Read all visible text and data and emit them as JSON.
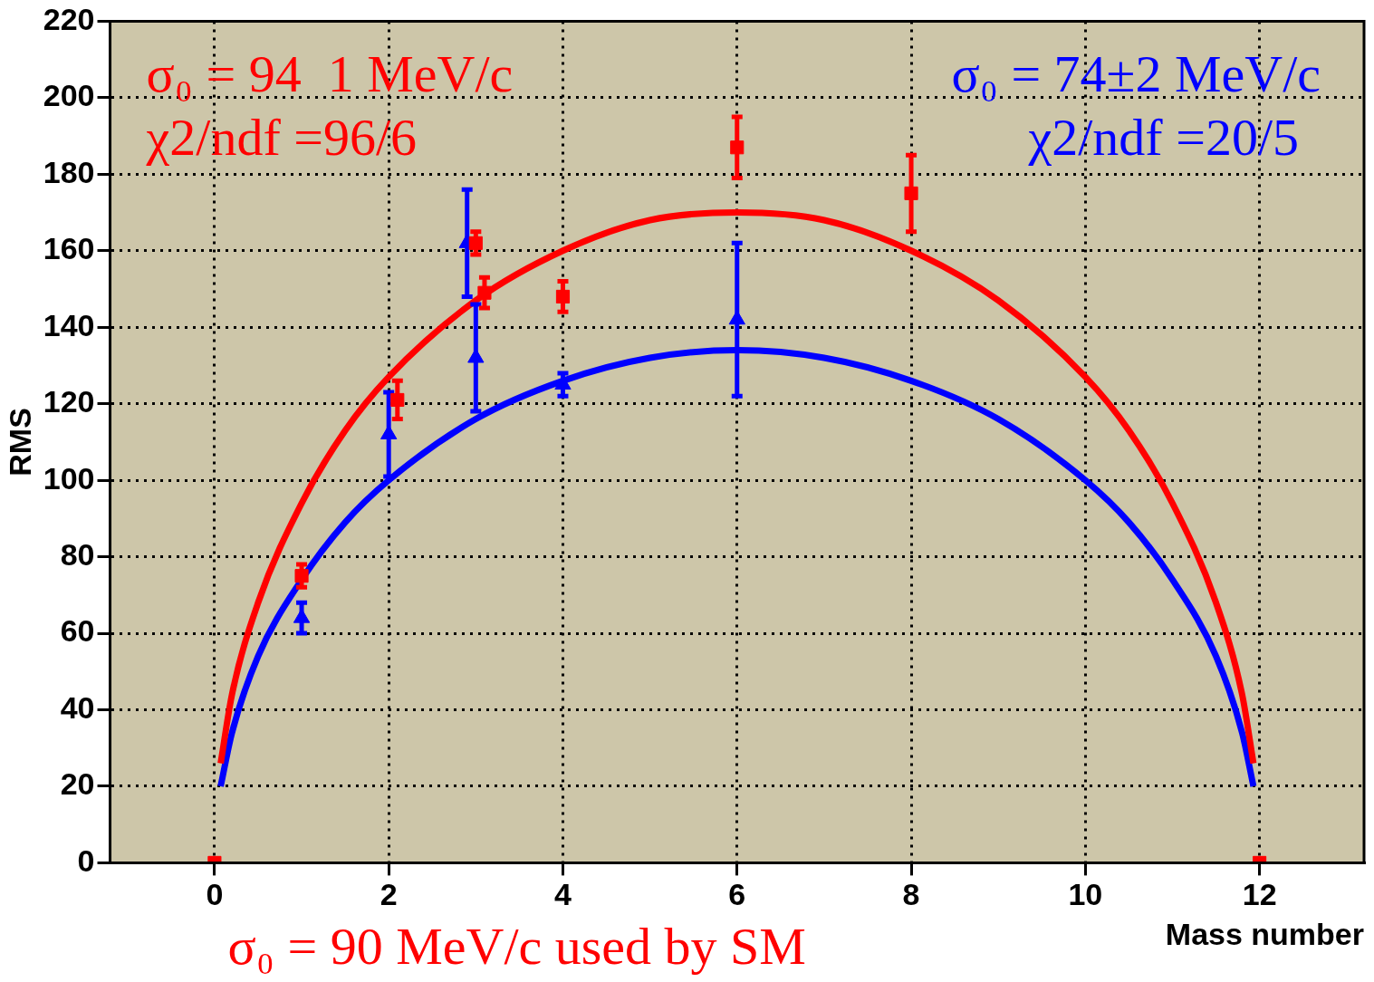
{
  "chart_data": {
    "type": "scatter",
    "xlabel": "Mass number",
    "ylabel": "RMS",
    "xlim": [
      -1.2,
      13.2
    ],
    "xticks": [
      0,
      2,
      4,
      6,
      8,
      10,
      12
    ],
    "ylim": [
      0,
      220
    ],
    "yticks": [
      0,
      20,
      40,
      60,
      80,
      100,
      120,
      140,
      160,
      180,
      200,
      220
    ],
    "grid": true,
    "legend": false,
    "series": [
      {
        "marker": "square",
        "color": "#ff0000",
        "x": [
          0,
          1,
          2.1,
          3,
          3.1,
          4,
          6,
          8,
          12
        ],
        "values": [
          0,
          75,
          121,
          162,
          149,
          148,
          187,
          175,
          0
        ],
        "errors": [
          null,
          3,
          5,
          3,
          4,
          4,
          8,
          10,
          null
        ]
      },
      {
        "marker": "triangle",
        "color": "#0000ff",
        "x": [
          1,
          2,
          2.9,
          3,
          4,
          6
        ],
        "values": [
          64,
          112,
          162,
          132,
          125,
          142
        ],
        "errors": [
          4,
          11,
          14,
          14,
          3,
          20
        ]
      },
      {
        "type": "line",
        "marker": "none",
        "color": "#ff0000",
        "x": [
          0.07,
          0.2,
          0.5,
          1,
          1.5,
          2,
          3,
          4,
          5,
          6,
          7,
          8,
          9,
          10,
          10.5,
          11,
          11.5,
          11.8,
          11.93
        ],
        "values": [
          26,
          44,
          68,
          94,
          113,
          127,
          147,
          160,
          168,
          170,
          168,
          160,
          147,
          127,
          113,
          94,
          68,
          44,
          26
        ]
      },
      {
        "type": "line",
        "marker": "none",
        "color": "#0000ff",
        "x": [
          0.07,
          0.2,
          0.5,
          1,
          1.5,
          2,
          3,
          4,
          5,
          6,
          7,
          8,
          9,
          10,
          10.5,
          11,
          11.5,
          11.8,
          11.93
        ],
        "values": [
          20,
          34,
          54,
          74,
          89,
          100,
          116,
          126,
          132,
          134,
          132,
          126,
          116,
          100,
          89,
          74,
          54,
          34,
          20
        ]
      }
    ],
    "annotations": [
      "σ₀ = 94  1 MeV/c",
      "χ2/ndf =96/6",
      "σ₀ = 74±2 MeV/c",
      "χ2/ndf =20/5",
      "σ₀ = 90 MeV/c used by SM"
    ]
  }
}
